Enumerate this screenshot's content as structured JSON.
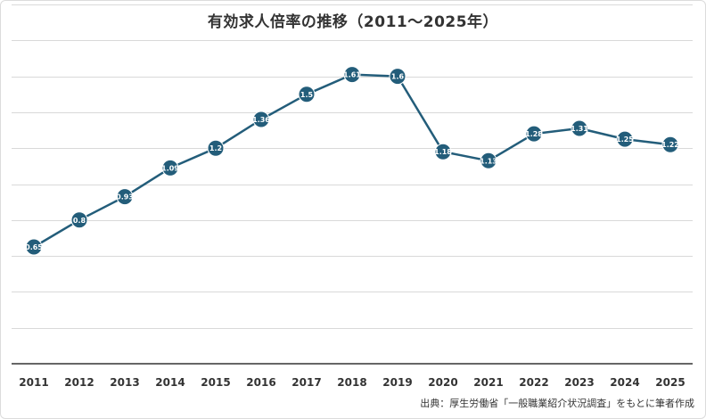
{
  "chart_data": {
    "type": "line",
    "title": "有効求人倍率の推移（2011〜2025年）",
    "categories": [
      "2011",
      "2012",
      "2013",
      "2014",
      "2015",
      "2016",
      "2017",
      "2018",
      "2019",
      "2020",
      "2021",
      "2022",
      "2023",
      "2024",
      "2025"
    ],
    "series": [
      {
        "values": [
          0.65,
          0.8,
          0.93,
          1.09,
          1.2,
          1.36,
          1.5,
          1.61,
          1.6,
          1.18,
          1.13,
          1.28,
          1.31,
          1.25,
          1.22
        ]
      }
    ],
    "ylim": [
      0,
      2.0
    ],
    "y_tick_labels_shown": false,
    "grid": true,
    "legend": "none",
    "xlabel": "",
    "ylabel": "",
    "source": "出典：厚生労働省「一般職業紹介状況調査」をもとに筆者作成"
  },
  "colors": {
    "line": "#235d7a",
    "marker": "#235d7a",
    "marker_text": "#ffffff",
    "grid": "#d9d9d9",
    "axis": "#333333",
    "text": "#333333"
  }
}
